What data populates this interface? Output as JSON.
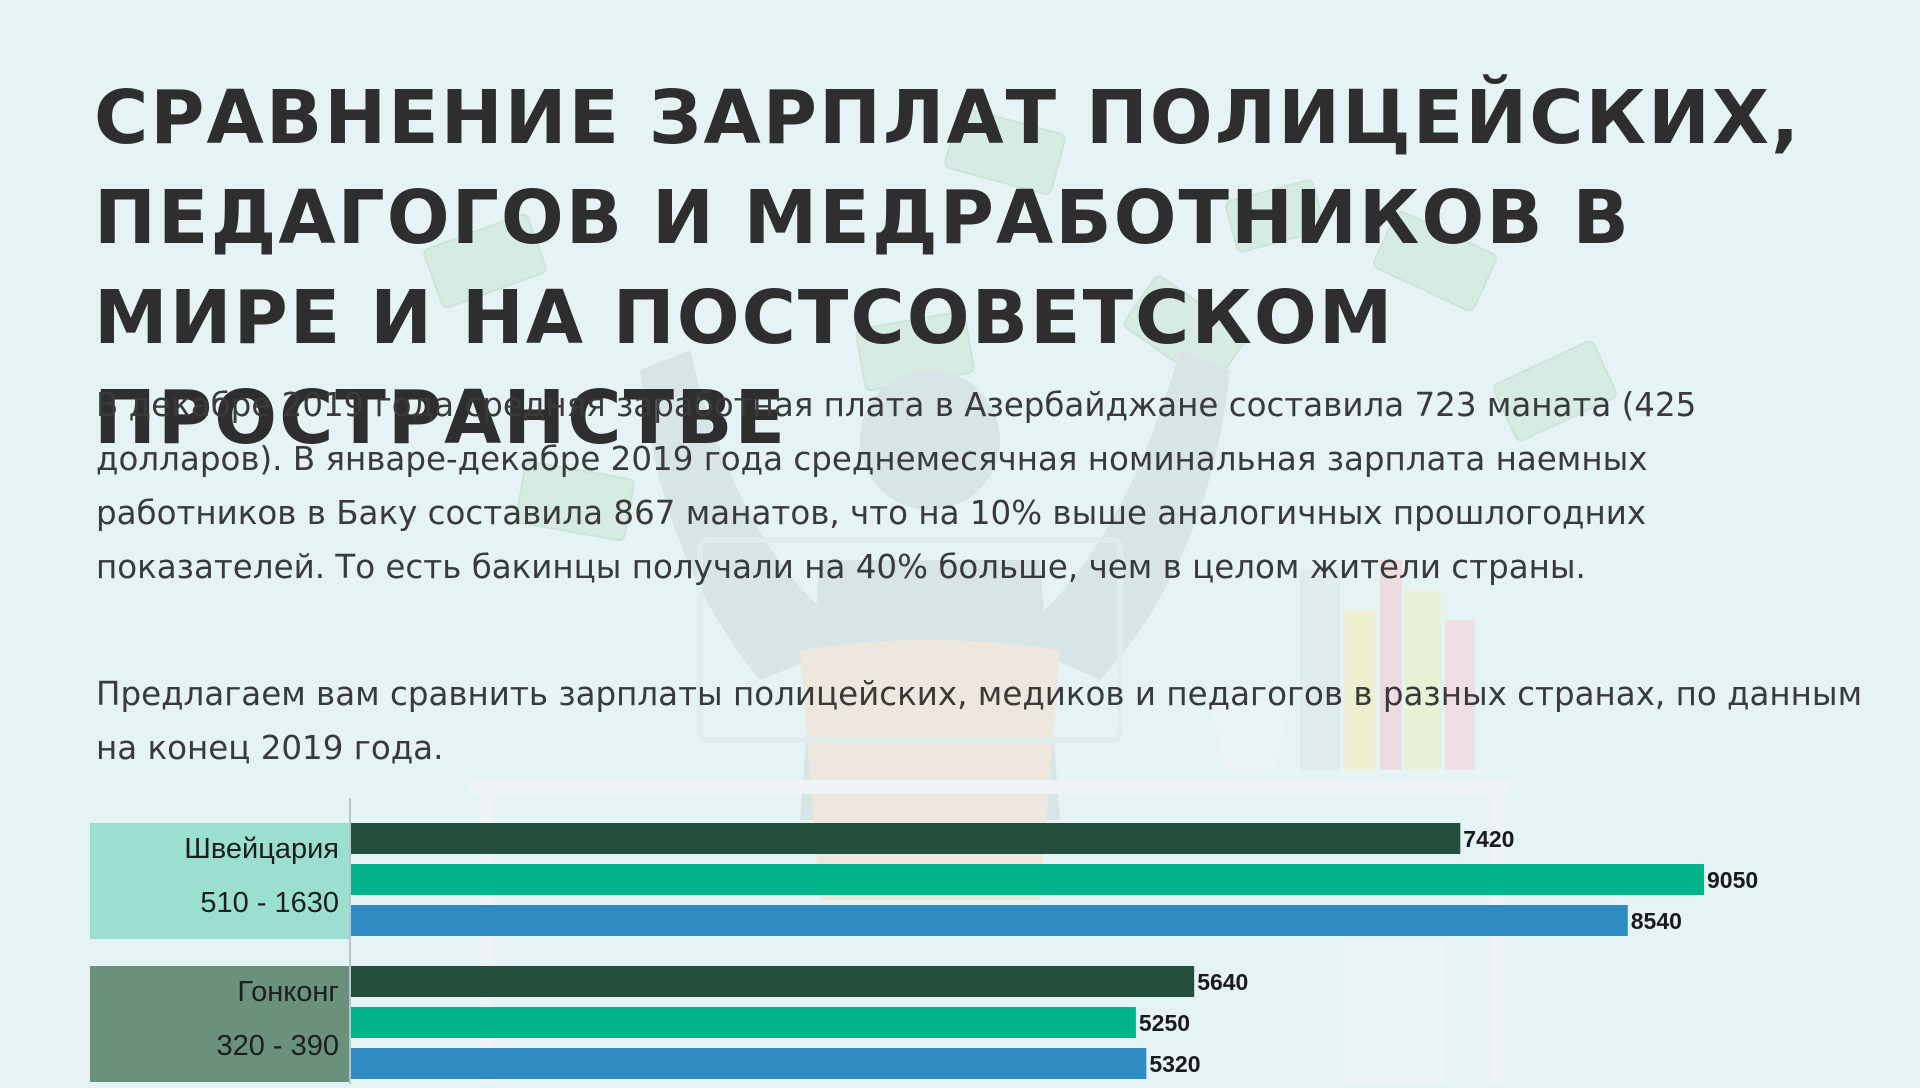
{
  "title": "Сравнение зарплат полицейских, педагогов и медработников в мире и на постсоветском пространстве",
  "intro_paragraph": "В декабре 2019 года средняя заработная плата в Азербайджане составила 723 маната (425 долларов). В январе-декабре 2019 года среднемесячная номинальная зарплата наемных работников в Баку составила 867 манатов, что на 10% выше аналогичных прошлогодних показателей. То есть бакинцы получали на 40% больше, чем в целом жители страны.",
  "compare_paragraph": "Предлагаем вам сравнить зарплаты полицейских, медиков и педагогов в разных странах, по данным на конец 2019 года.",
  "colors": {
    "dark_green_bar": "#234f3c",
    "teal_bar": "#00b38a",
    "blue_bar": "#2f8cc0",
    "label_box_light": "#9adfd0",
    "label_box_dark": "#6a917c",
    "title_text": "#2e2e2e",
    "background": "#e6f3f5"
  },
  "chart_data": {
    "type": "bar",
    "orientation": "horizontal",
    "categories": [
      {
        "name": "Швейцария",
        "range": "510 - 1630"
      },
      {
        "name": "Гонконг",
        "range": "320 - 390"
      }
    ],
    "series": [
      {
        "values": [
          7420,
          5640
        ],
        "color": "#234f3c"
      },
      {
        "values": [
          9050,
          5250
        ],
        "color": "#00b38a"
      },
      {
        "values": [
          8540,
          5320
        ],
        "color": "#2f8cc0"
      }
    ],
    "xlim": [
      0,
      9050
    ],
    "grid": false,
    "legend": "none"
  }
}
